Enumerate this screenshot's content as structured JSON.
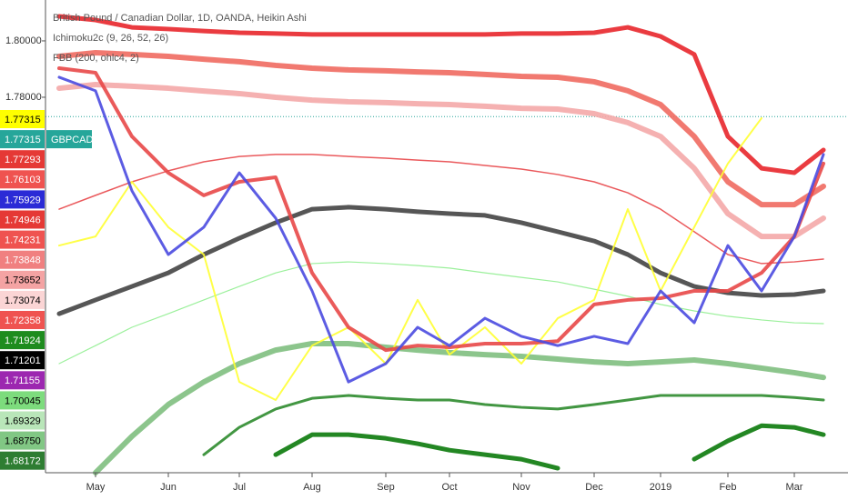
{
  "chart_data": {
    "type": "line",
    "title": "British Pound / Canadian Dollar, 1D, OANDA, Heikin Ashi",
    "indicators": [
      "Ichimoku2c (9, 26, 52, 26)",
      "FBB (200, ohlc4, 2)"
    ],
    "symbol": "GBPCAD",
    "categories": [
      null,
      "May",
      null,
      "Jun",
      null,
      "Jul",
      null,
      "Aug",
      null,
      "Sep",
      null,
      "Oct",
      null,
      "Nov",
      null,
      "Dec",
      null,
      "2019",
      null,
      "Feb",
      null,
      "Mar",
      null
    ],
    "ylim": [
      1.6468,
      1.8145
    ],
    "yticks": [
      {
        "value": 1.8,
        "label": "1.80000"
      },
      {
        "value": 1.78,
        "label": "1.78000"
      }
    ],
    "last_price": 1.77315,
    "price_labels": [
      {
        "label": "1.77315",
        "color": "#ffff00",
        "text_color": "#000000"
      },
      {
        "label": "1.77315",
        "color": "#26a69a",
        "text_color": "#ffffff"
      },
      {
        "label": "1.77293",
        "color": "#e53935",
        "text_color": "#ffffff"
      },
      {
        "label": "1.76103",
        "color": "#ef5350",
        "text_color": "#ffffff"
      },
      {
        "label": "1.75929",
        "color": "#2b2bd6",
        "text_color": "#ffffff"
      },
      {
        "label": "1.74946",
        "color": "#e53935",
        "text_color": "#ffffff"
      },
      {
        "label": "1.74231",
        "color": "#ef5350",
        "text_color": "#ffffff"
      },
      {
        "label": "1.73848",
        "color": "#f08080",
        "text_color": "#ffffff"
      },
      {
        "label": "1.73652",
        "color": "#f4a3a3",
        "text_color": "#000000"
      },
      {
        "label": "1.73074",
        "color": "#fbd5d5",
        "text_color": "#000000"
      },
      {
        "label": "1.72358",
        "color": "#ef5350",
        "text_color": "#ffffff"
      },
      {
        "label": "1.71924",
        "color": "#1e8c1e",
        "text_color": "#ffffff"
      },
      {
        "label": "1.71201",
        "color": "#000000",
        "text_color": "#ffffff"
      },
      {
        "label": "1.71155",
        "color": "#9c27b0",
        "text_color": "#ffffff"
      },
      {
        "label": "1.70045",
        "color": "#7ddc7d",
        "text_color": "#000000"
      },
      {
        "label": "1.69329",
        "color": "#b9e6b9",
        "text_color": "#000000"
      },
      {
        "label": "1.68750",
        "color": "#81c784",
        "text_color": "#000000"
      },
      {
        "label": "1.68172",
        "color": "#2e7d32",
        "text_color": "#ffffff"
      }
    ],
    "series": [
      {
        "color": "#e8262b",
        "width": 5,
        "values": [
          1.8087,
          1.8074,
          1.8048,
          1.8042,
          1.8035,
          1.8029,
          1.8026,
          1.8023,
          1.8023,
          1.8023,
          1.8023,
          1.8023,
          1.8023,
          1.8026,
          1.8026,
          1.8029,
          1.8048,
          1.8016,
          1.7952,
          1.7661,
          1.7548,
          1.7532,
          1.7613
        ]
      },
      {
        "color": "#f06a60",
        "width": 6,
        "values": [
          1.7945,
          1.7958,
          1.7952,
          1.7945,
          1.7935,
          1.7926,
          1.7913,
          1.7903,
          1.7897,
          1.7894,
          1.789,
          1.7887,
          1.7881,
          1.7874,
          1.7871,
          1.7855,
          1.7823,
          1.7774,
          1.7661,
          1.75,
          1.7419,
          1.7419,
          1.7484
        ]
      },
      {
        "color": "#f4a8a8",
        "width": 6,
        "values": [
          1.7832,
          1.7845,
          1.7839,
          1.7832,
          1.7822,
          1.7813,
          1.78,
          1.779,
          1.7784,
          1.7781,
          1.7777,
          1.7774,
          1.7768,
          1.7761,
          1.7758,
          1.7742,
          1.771,
          1.7661,
          1.7548,
          1.7387,
          1.7306,
          1.7306,
          1.7371
        ]
      },
      {
        "color": "#e8474a",
        "width": 1.5,
        "values": [
          1.7403,
          1.7452,
          1.75,
          1.7539,
          1.7571,
          1.759,
          1.7597,
          1.7597,
          1.759,
          1.7584,
          1.7577,
          1.7571,
          1.7558,
          1.7545,
          1.7526,
          1.75,
          1.7461,
          1.7403,
          1.7323,
          1.7242,
          1.721,
          1.7216,
          1.7226
        ]
      },
      {
        "color": "#90ee90",
        "width": 1.2,
        "values": [
          1.6855,
          1.6919,
          1.6984,
          1.7032,
          1.7081,
          1.7129,
          1.7177,
          1.721,
          1.7216,
          1.721,
          1.7203,
          1.7194,
          1.7177,
          1.7161,
          1.7145,
          1.7119,
          1.7094,
          1.7065,
          1.7042,
          1.7023,
          1.701,
          1.7,
          1.6997
        ]
      },
      {
        "color": "#7fbf7f",
        "width": 6,
        "values": [
          null,
          1.6468,
          1.6597,
          1.671,
          1.679,
          1.6855,
          1.6903,
          1.6926,
          1.6926,
          1.6913,
          1.6903,
          1.6894,
          1.6887,
          1.6881,
          1.6871,
          1.6861,
          1.6855,
          1.6861,
          1.6868,
          1.6855,
          1.6839,
          1.6823,
          1.6806
        ]
      },
      {
        "color": "#2e8b2e",
        "width": 3,
        "values": [
          null,
          null,
          null,
          null,
          1.6532,
          1.6629,
          1.6694,
          1.6732,
          1.6742,
          1.6732,
          1.6726,
          1.6726,
          1.671,
          1.67,
          1.6694,
          1.671,
          1.6726,
          1.6742,
          1.6742,
          1.6742,
          1.6742,
          1.6735,
          1.6726
        ]
      },
      {
        "color": "#0b7a0b",
        "width": 5,
        "values": [
          null,
          null,
          null,
          null,
          null,
          null,
          1.6532,
          1.6603,
          1.6603,
          1.659,
          1.6571,
          1.6548,
          1.6532,
          1.6516,
          1.6484,
          null,
          null,
          null,
          1.6516,
          1.6581,
          1.6635,
          1.6629,
          1.6603
        ]
      },
      {
        "color": "#444444",
        "width": 5,
        "values": [
          1.7032,
          1.7081,
          1.7129,
          1.7177,
          1.7242,
          1.73,
          1.7355,
          1.7403,
          1.741,
          1.7403,
          1.7394,
          1.7387,
          1.7381,
          1.7355,
          1.7323,
          1.729,
          1.7242,
          1.7177,
          1.7129,
          1.7106,
          1.7097,
          1.71,
          1.7113
        ]
      },
      {
        "color": "#ffff33",
        "width": 2,
        "values": [
          1.7274,
          1.7306,
          1.75,
          1.7339,
          1.7242,
          1.679,
          1.6726,
          1.6919,
          1.6984,
          1.6855,
          1.7081,
          1.6887,
          1.6984,
          1.6855,
          1.7016,
          1.7081,
          1.7403,
          1.7113,
          1.7339,
          1.7565,
          1.7726,
          null,
          null
        ]
      },
      {
        "color": "#e84848",
        "width": 4,
        "values": [
          1.7903,
          1.7887,
          1.7661,
          1.7532,
          1.7452,
          1.75,
          1.7516,
          1.7177,
          1.6984,
          1.6903,
          1.6919,
          1.6913,
          1.6926,
          1.6926,
          1.6935,
          1.7065,
          1.7081,
          1.7087,
          1.7113,
          1.7113,
          1.7177,
          1.7306,
          1.7565
        ]
      },
      {
        "color": "#4a4ae0",
        "width": 3,
        "values": [
          1.7871,
          1.7823,
          1.7468,
          1.7242,
          1.7339,
          1.7532,
          1.7371,
          1.7113,
          1.679,
          1.6855,
          1.6984,
          1.6919,
          1.7016,
          1.6952,
          1.6919,
          1.6952,
          1.6926,
          1.7113,
          1.7,
          1.7274,
          1.7113,
          1.7306,
          1.7597
        ]
      }
    ]
  }
}
